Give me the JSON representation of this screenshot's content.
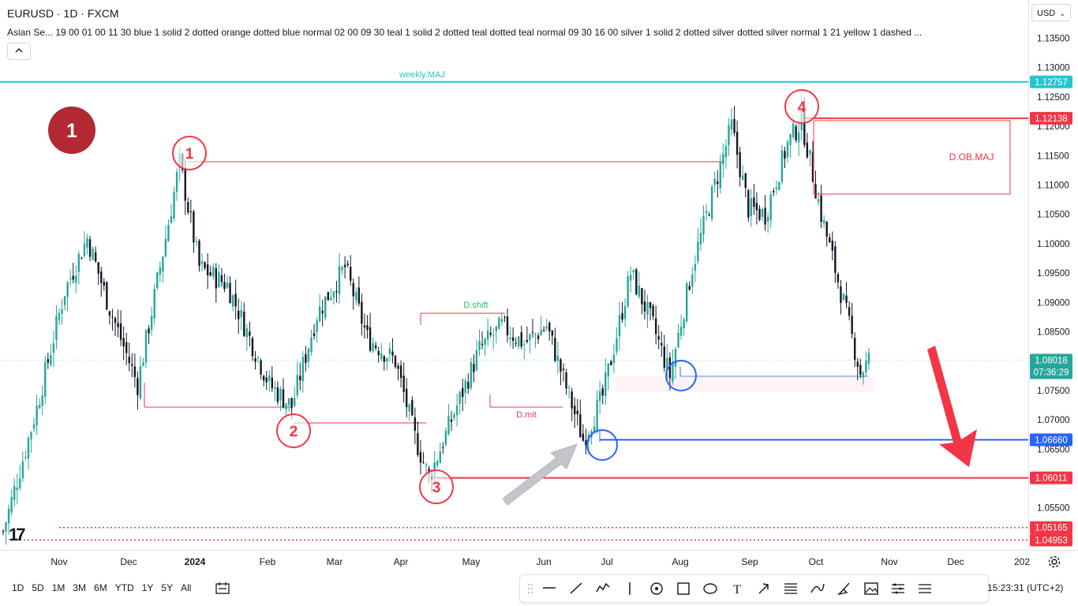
{
  "header": {
    "symbol_title": "EURUSD · 1D · FXCM",
    "indicator_line": "Asian Se... 19 00 01 00 11 30 blue 1 solid 2 dotted orange dotted blue normal 02 00 09 30 teal 1 solid 2 dotted teal dotted teal normal 09 30 16 00 silver 1 solid 2 dotted silver dotted silver normal 1 21 yellow 1 dashed ...",
    "collapse_icon": "chevron-up-icon"
  },
  "currency_selector": {
    "value": "USD",
    "icon": "chevron-down-icon"
  },
  "timeframes": [
    "1D",
    "5D",
    "1M",
    "3M",
    "6M",
    "YTD",
    "1Y",
    "5Y",
    "All"
  ],
  "drawing_tools": [
    "horizontal-line-icon",
    "trend-line-icon",
    "pattern-icon",
    "vertical-line-icon",
    "circle-icon",
    "rectangle-icon",
    "ellipse-icon",
    "text-icon",
    "arrow-icon",
    "fib-icon",
    "path-icon",
    "brush-icon",
    "image-icon",
    "measure-icon",
    "settings-list-icon"
  ],
  "clock": "15:23:31 (UTC+2)",
  "colors": {
    "up": "#26a69a",
    "down": "#131722",
    "teal_level": "#25c6cf",
    "red": "#f23645",
    "red_dark": "#b22833",
    "blue": "#2962ff",
    "gray_arrow": "#b2b5be"
  },
  "chart_data": {
    "type": "candlestick",
    "symbol": "EURUSD",
    "interval": "1D",
    "ylim": [
      1.0485,
      1.1395
    ],
    "x_ticks": [
      "Nov",
      "Dec",
      "2024",
      "Feb",
      "Mar",
      "Apr",
      "May",
      "Jun",
      "Jul",
      "Aug",
      "Sep",
      "Oct",
      "Nov",
      "Dec",
      "202"
    ],
    "y_ticks": [
      "1.13500",
      "1.13000",
      "1.12500",
      "1.12000",
      "1.11500",
      "1.11000",
      "1.10500",
      "1.10000",
      "1.09500",
      "1.09000",
      "1.08500",
      "1.08000",
      "1.07500",
      "1.07000",
      "1.06500",
      "1.06000",
      "1.05500",
      "1.05000"
    ],
    "price_tags": [
      {
        "value": "1.12757",
        "color": "#25c6cf"
      },
      {
        "value": "1.12138",
        "color": "#f23645"
      },
      {
        "value": "1.06660",
        "color": "#2962ff"
      },
      {
        "value": "1.06011",
        "color": "#f23645"
      },
      {
        "value": "1.05165",
        "color": "#f23645"
      },
      {
        "value": "1.04953",
        "color": "#f23645"
      }
    ],
    "last_price": {
      "value": "1.08018",
      "countdown": "07:36:29",
      "color": "#26a69a"
    },
    "path_points": [
      {
        "i": 0,
        "p": 1.051
      },
      {
        "i": 12,
        "p": 1.072
      },
      {
        "i": 22,
        "p": 1.092
      },
      {
        "i": 30,
        "p": 1.101
      },
      {
        "i": 38,
        "p": 1.089
      },
      {
        "i": 48,
        "p": 1.076
      },
      {
        "i": 58,
        "p": 1.101
      },
      {
        "i": 63,
        "p": 1.1139
      },
      {
        "i": 70,
        "p": 1.096
      },
      {
        "i": 80,
        "p": 1.093
      },
      {
        "i": 95,
        "p": 1.076
      },
      {
        "i": 103,
        "p": 1.0723
      },
      {
        "i": 112,
        "p": 1.088
      },
      {
        "i": 122,
        "p": 1.096
      },
      {
        "i": 130,
        "p": 1.084
      },
      {
        "i": 140,
        "p": 1.08
      },
      {
        "i": 147,
        "p": 1.067
      },
      {
        "i": 152,
        "p": 1.0601
      },
      {
        "i": 160,
        "p": 1.07
      },
      {
        "i": 170,
        "p": 1.082
      },
      {
        "i": 178,
        "p": 1.086
      },
      {
        "i": 186,
        "p": 1.083
      },
      {
        "i": 194,
        "p": 1.086
      },
      {
        "i": 200,
        "p": 1.077
      },
      {
        "i": 207,
        "p": 1.0666
      },
      {
        "i": 214,
        "p": 1.074
      },
      {
        "i": 224,
        "p": 1.095
      },
      {
        "i": 232,
        "p": 1.086
      },
      {
        "i": 238,
        "p": 1.0775
      },
      {
        "i": 246,
        "p": 1.096
      },
      {
        "i": 254,
        "p": 1.11
      },
      {
        "i": 260,
        "p": 1.12
      },
      {
        "i": 266,
        "p": 1.106
      },
      {
        "i": 272,
        "p": 1.105
      },
      {
        "i": 280,
        "p": 1.117
      },
      {
        "i": 285,
        "p": 1.121
      },
      {
        "i": 292,
        "p": 1.105
      },
      {
        "i": 300,
        "p": 1.09
      },
      {
        "i": 306,
        "p": 1.078
      },
      {
        "i": 309,
        "p": 1.0802
      }
    ],
    "levels": [
      {
        "label": "weekly.MAJ",
        "value": 1.12757,
        "color": "#25c6cf"
      },
      {
        "label": "",
        "value": 1.0666,
        "color": "#2962ff"
      },
      {
        "label": "",
        "value": 1.06011,
        "color": "#f23645"
      },
      {
        "label": "",
        "value": 1.05165,
        "color": "#f23645",
        "dotted": true
      },
      {
        "label": "",
        "value": 1.04953,
        "color": "#f23645",
        "dotted": true
      }
    ],
    "annotations": {
      "big_badge": "1",
      "swing_labels": [
        "1",
        "2",
        "3",
        "4"
      ],
      "d_shift": "D.shift",
      "d_mit": "D.mit",
      "ob_box": "D.OB.MAJ"
    }
  }
}
